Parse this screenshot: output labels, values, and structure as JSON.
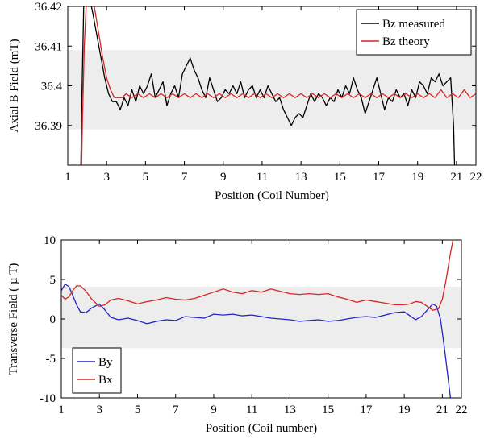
{
  "chart_data": [
    {
      "type": "line",
      "xlabel": "Position (Coil Number)",
      "ylabel": "Axial B Field (mT)",
      "xlim": [
        1,
        22
      ],
      "ylim": [
        36.38,
        36.42
      ],
      "xticks": [
        1,
        3,
        5,
        7,
        9,
        11,
        13,
        15,
        17,
        19,
        21,
        22
      ],
      "xtick_labels": [
        "1",
        "3",
        "5",
        "7",
        "9",
        "11",
        "13",
        "15",
        "17",
        "19",
        "21",
        "22"
      ],
      "yticks": [
        36.39,
        36.4,
        36.41,
        36.42
      ],
      "ytick_labels": [
        "36.39",
        "36.4",
        "36.41",
        "36.42"
      ],
      "band": [
        36.389,
        36.409
      ],
      "band_color": "#ededed",
      "legend_position": "top-right",
      "grid": false,
      "series": [
        {
          "name": "Bz measured",
          "color": "#000000",
          "x": [
            1.65,
            1.72,
            1.82,
            1.9,
            2.05,
            2.3,
            2.6,
            2.9,
            3.1,
            3.3,
            3.5,
            3.7,
            3.9,
            4.1,
            4.3,
            4.5,
            4.7,
            4.9,
            5.1,
            5.3,
            5.5,
            5.7,
            5.9,
            6.1,
            6.3,
            6.5,
            6.7,
            6.9,
            7.1,
            7.3,
            7.5,
            7.7,
            7.9,
            8.1,
            8.3,
            8.5,
            8.7,
            8.9,
            9.1,
            9.3,
            9.5,
            9.7,
            9.9,
            10.1,
            10.3,
            10.5,
            10.7,
            10.9,
            11.1,
            11.3,
            11.5,
            11.7,
            11.9,
            12.1,
            12.3,
            12.5,
            12.7,
            12.9,
            13.1,
            13.3,
            13.5,
            13.7,
            13.9,
            14.1,
            14.3,
            14.5,
            14.7,
            14.9,
            15.1,
            15.3,
            15.5,
            15.7,
            15.9,
            16.1,
            16.3,
            16.5,
            16.7,
            16.9,
            17.1,
            17.3,
            17.5,
            17.7,
            17.9,
            18.1,
            18.3,
            18.5,
            18.7,
            18.9,
            19.1,
            19.3,
            19.5,
            19.7,
            19.9,
            20.1,
            20.3,
            20.5,
            20.7,
            20.85,
            20.95
          ],
          "values": [
            36.372,
            36.395,
            36.42,
            36.43,
            36.424,
            36.418,
            36.41,
            36.402,
            36.398,
            36.396,
            36.396,
            36.394,
            36.397,
            36.395,
            36.399,
            36.396,
            36.4,
            36.398,
            36.4,
            36.403,
            36.397,
            36.399,
            36.401,
            36.395,
            36.398,
            36.4,
            36.397,
            36.403,
            36.405,
            36.407,
            36.404,
            36.402,
            36.399,
            36.397,
            36.402,
            36.399,
            36.396,
            36.397,
            36.399,
            36.398,
            36.4,
            36.398,
            36.401,
            36.397,
            36.399,
            36.4,
            36.397,
            36.399,
            36.397,
            36.4,
            36.398,
            36.396,
            36.397,
            36.394,
            36.392,
            36.39,
            36.392,
            36.393,
            36.392,
            36.395,
            36.398,
            36.396,
            36.398,
            36.397,
            36.395,
            36.397,
            36.396,
            36.399,
            36.397,
            36.4,
            36.398,
            36.402,
            36.399,
            36.397,
            36.393,
            36.396,
            36.399,
            36.402,
            36.398,
            36.394,
            36.397,
            36.396,
            36.399,
            36.397,
            36.398,
            36.395,
            36.399,
            36.397,
            36.401,
            36.4,
            36.398,
            36.402,
            36.401,
            36.403,
            36.4,
            36.401,
            36.402,
            36.39,
            36.37
          ]
        },
        {
          "name": "Bz theory",
          "color": "#d62728",
          "x": [
            1.68,
            1.75,
            1.85,
            2.0,
            2.2,
            2.4,
            2.6,
            2.8,
            3.0,
            3.2,
            3.4,
            3.6,
            3.8,
            4.0,
            4.3,
            4.6,
            4.9,
            5.2,
            5.5,
            5.8,
            6.1,
            6.4,
            6.7,
            7.0,
            7.3,
            7.6,
            7.9,
            8.2,
            8.5,
            8.8,
            9.1,
            9.4,
            9.7,
            10.0,
            10.3,
            10.6,
            10.9,
            11.2,
            11.5,
            11.8,
            12.1,
            12.4,
            12.7,
            13.0,
            13.3,
            13.6,
            13.9,
            14.2,
            14.5,
            14.8,
            15.1,
            15.4,
            15.7,
            16.0,
            16.3,
            16.6,
            16.9,
            17.2,
            17.5,
            17.8,
            18.1,
            18.4,
            18.7,
            19.0,
            19.3,
            19.6,
            19.9,
            20.2,
            20.5,
            20.8,
            21.1,
            21.4,
            21.7,
            22.0
          ],
          "values": [
            36.37,
            36.39,
            36.41,
            36.426,
            36.424,
            36.419,
            36.413,
            36.407,
            36.402,
            36.399,
            36.397,
            36.397,
            36.397,
            36.398,
            36.397,
            36.398,
            36.397,
            36.398,
            36.397,
            36.398,
            36.397,
            36.398,
            36.397,
            36.398,
            36.397,
            36.398,
            36.397,
            36.398,
            36.397,
            36.398,
            36.397,
            36.398,
            36.397,
            36.398,
            36.397,
            36.398,
            36.397,
            36.398,
            36.397,
            36.398,
            36.397,
            36.398,
            36.397,
            36.398,
            36.397,
            36.398,
            36.397,
            36.398,
            36.397,
            36.398,
            36.397,
            36.398,
            36.397,
            36.398,
            36.397,
            36.398,
            36.397,
            36.398,
            36.397,
            36.398,
            36.397,
            36.398,
            36.397,
            36.398,
            36.397,
            36.398,
            36.397,
            36.399,
            36.397,
            36.398,
            36.397,
            36.399,
            36.397,
            36.398
          ]
        }
      ]
    },
    {
      "type": "line",
      "xlabel": "Position (Coil number)",
      "ylabel": "Transverse Field ( µ T)",
      "xlim": [
        1,
        22
      ],
      "ylim": [
        -10,
        10
      ],
      "xticks": [
        1,
        3,
        5,
        7,
        9,
        11,
        13,
        15,
        17,
        19,
        21,
        22
      ],
      "xtick_labels": [
        "1",
        "3",
        "5",
        "7",
        "9",
        "11",
        "13",
        "15",
        "17",
        "19",
        "21",
        "22"
      ],
      "yticks": [
        -10,
        -5,
        0,
        5,
        10
      ],
      "ytick_labels": [
        "-10",
        "-5",
        "0",
        "5",
        "10"
      ],
      "band": [
        -3.7,
        4.1
      ],
      "band_color": "#ededed",
      "legend_position": "bottom-left",
      "grid": false,
      "series": [
        {
          "name": "By",
          "color": "#2525c8",
          "x": [
            1.0,
            1.2,
            1.4,
            1.6,
            1.8,
            2.0,
            2.3,
            2.6,
            3.0,
            3.3,
            3.6,
            4.0,
            4.5,
            5.0,
            5.5,
            6.0,
            6.5,
            7.0,
            7.5,
            8.0,
            8.5,
            9.0,
            9.5,
            10.0,
            10.5,
            11.0,
            11.5,
            12.0,
            12.5,
            13.0,
            13.5,
            14.0,
            14.5,
            15.0,
            15.5,
            16.0,
            16.5,
            17.0,
            17.5,
            18.0,
            18.5,
            19.0,
            19.3,
            19.6,
            19.9,
            20.2,
            20.5,
            20.7,
            20.9,
            21.1,
            21.3,
            21.45
          ],
          "values": [
            3.6,
            4.4,
            4.1,
            3.0,
            1.8,
            0.9,
            0.8,
            1.4,
            1.9,
            1.1,
            0.2,
            -0.1,
            0.1,
            -0.2,
            -0.6,
            -0.3,
            -0.1,
            -0.2,
            0.3,
            0.2,
            0.1,
            0.6,
            0.5,
            0.6,
            0.4,
            0.5,
            0.3,
            0.1,
            0.0,
            -0.1,
            -0.3,
            -0.2,
            -0.1,
            -0.3,
            -0.2,
            0.0,
            0.2,
            0.3,
            0.2,
            0.5,
            0.8,
            0.9,
            0.4,
            -0.1,
            0.3,
            1.1,
            1.9,
            1.6,
            0.0,
            -3.5,
            -7.5,
            -10.5
          ]
        },
        {
          "name": "Bx",
          "color": "#d62728",
          "x": [
            1.0,
            1.2,
            1.4,
            1.6,
            1.8,
            2.0,
            2.3,
            2.6,
            3.0,
            3.3,
            3.6,
            4.0,
            4.5,
            5.0,
            5.5,
            6.0,
            6.5,
            7.0,
            7.5,
            8.0,
            8.5,
            9.0,
            9.5,
            10.0,
            10.5,
            11.0,
            11.5,
            12.0,
            12.5,
            13.0,
            13.5,
            14.0,
            14.5,
            15.0,
            15.5,
            16.0,
            16.5,
            17.0,
            17.5,
            18.0,
            18.5,
            19.0,
            19.3,
            19.6,
            19.9,
            20.2,
            20.5,
            20.8,
            21.0,
            21.2,
            21.4,
            21.6
          ],
          "values": [
            3.0,
            2.5,
            2.8,
            3.6,
            4.2,
            4.2,
            3.5,
            2.5,
            1.6,
            1.8,
            2.4,
            2.6,
            2.3,
            1.9,
            2.2,
            2.4,
            2.7,
            2.5,
            2.4,
            2.6,
            3.0,
            3.4,
            3.8,
            3.4,
            3.2,
            3.6,
            3.4,
            3.8,
            3.5,
            3.2,
            3.1,
            3.2,
            3.1,
            3.2,
            2.8,
            2.5,
            2.1,
            2.4,
            2.2,
            2.0,
            1.8,
            1.8,
            1.9,
            2.2,
            2.1,
            1.6,
            1.1,
            1.3,
            2.5,
            5.0,
            8.0,
            10.5
          ]
        }
      ]
    }
  ]
}
